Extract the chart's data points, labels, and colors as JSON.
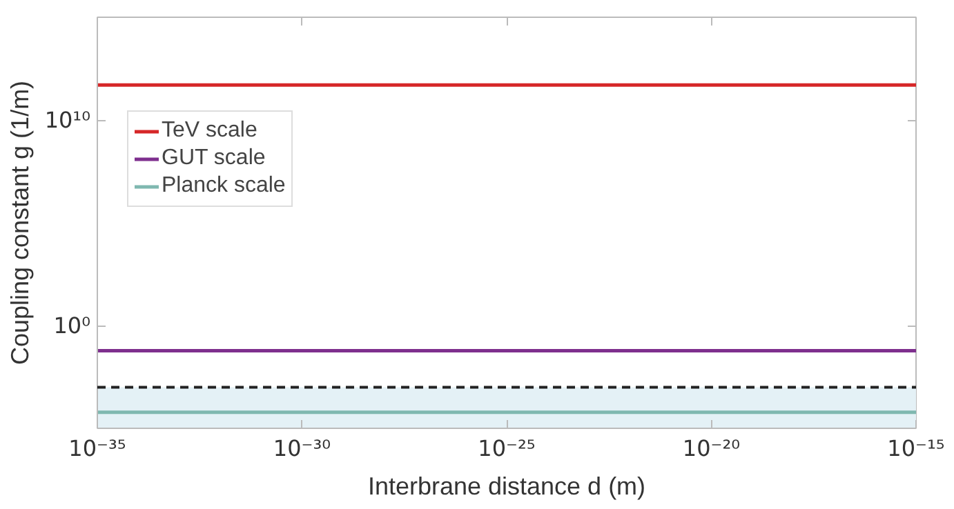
{
  "chart_data": {
    "type": "line",
    "xlabel": "Interbrane distance d (m)",
    "ylabel": "Coupling constant g (1/m)",
    "x": [
      1e-35,
      1e-15
    ],
    "series": [
      {
        "name": "TeV scale",
        "color": "#d62728",
        "values": [
          500000000000.0,
          500000000000.0
        ]
      },
      {
        "name": "GUT scale",
        "color": "#7e2f8e",
        "values": [
          0.06,
          0.06
        ]
      },
      {
        "name": "Planck scale",
        "color": "#7fb8b0",
        "values": [
          6e-05,
          6e-05
        ]
      }
    ],
    "ref_lines": [
      {
        "axis": "y",
        "value": 0.001,
        "label": null,
        "color": "#222222",
        "line_style": "dashed"
      }
    ],
    "bands": [
      {
        "axis": "y",
        "from": 1e-05,
        "to": 0.001,
        "label": null,
        "color": "#e4f1f6"
      }
    ],
    "log": "xy",
    "xlim": [
      1e-35,
      1e-15
    ],
    "xticks": [
      {
        "value": 1e-35,
        "label": "10⁻³⁵"
      },
      {
        "value": 1e-30,
        "label": "10⁻³⁰"
      },
      {
        "value": 1e-25,
        "label": "10⁻²⁵"
      },
      {
        "value": 1e-20,
        "label": "10⁻²⁰"
      },
      {
        "value": 1e-15,
        "label": "10⁻¹⁵"
      }
    ],
    "ylim": [
      1e-05,
      1000000000000000.0
    ],
    "yticks": [
      {
        "value": 1,
        "label": "10⁰"
      },
      {
        "value": 10000000000.0,
        "label": "10¹⁰"
      }
    ],
    "grid": false,
    "legend": "top left",
    "line_style": "solid",
    "marker": "none"
  }
}
